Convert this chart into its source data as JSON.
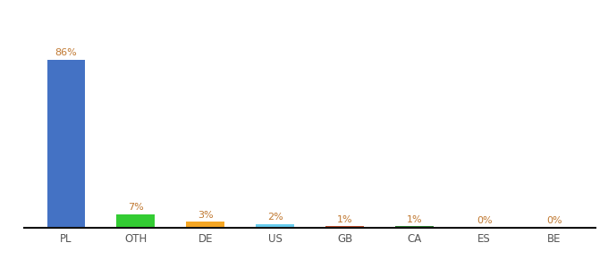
{
  "categories": [
    "PL",
    "OTH",
    "DE",
    "US",
    "GB",
    "CA",
    "ES",
    "BE"
  ],
  "values": [
    86,
    7,
    3,
    2,
    1,
    1,
    0.3,
    0.3
  ],
  "labels": [
    "86%",
    "7%",
    "3%",
    "2%",
    "1%",
    "1%",
    "0%",
    "0%"
  ],
  "bar_colors": [
    "#4472c4",
    "#33cc33",
    "#f5a623",
    "#66ccee",
    "#b94c2b",
    "#2e7d32",
    "#aaaaaa",
    "#aaaaaa"
  ],
  "ylim": [
    0,
    100
  ],
  "background_color": "#ffffff",
  "label_color": "#c07830",
  "tick_color": "#555555"
}
